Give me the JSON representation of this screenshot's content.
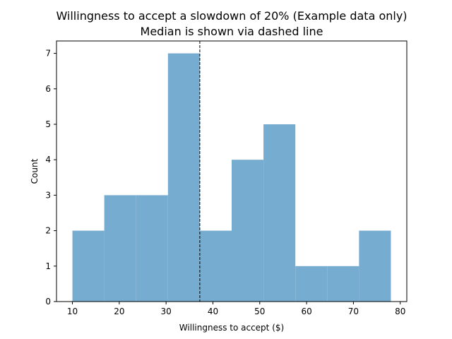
{
  "chart_data": {
    "type": "bar",
    "title": "Willingness to accept a slowdown of 20% (Example data only)",
    "subtitle": "Median is shown via dashed line",
    "xlabel": "Willingness to accept ($)",
    "ylabel": "Count",
    "bin_edges": [
      10,
      16.8,
      23.6,
      30.4,
      37.2,
      44.0,
      50.8,
      57.6,
      64.4,
      71.2,
      78.0
    ],
    "values": [
      2,
      3,
      3,
      7,
      2,
      4,
      5,
      1,
      1,
      2
    ],
    "median": 37.2,
    "xlim": [
      6.6,
      81.4
    ],
    "ylim": [
      0,
      7.35
    ],
    "xticks": [
      10,
      20,
      30,
      40,
      50,
      60,
      70,
      80
    ],
    "yticks": [
      0,
      1,
      2,
      3,
      4,
      5,
      6,
      7
    ],
    "bar_color": "#77acd1",
    "median_line_color": "#000000",
    "grid": false,
    "legend": "none"
  }
}
